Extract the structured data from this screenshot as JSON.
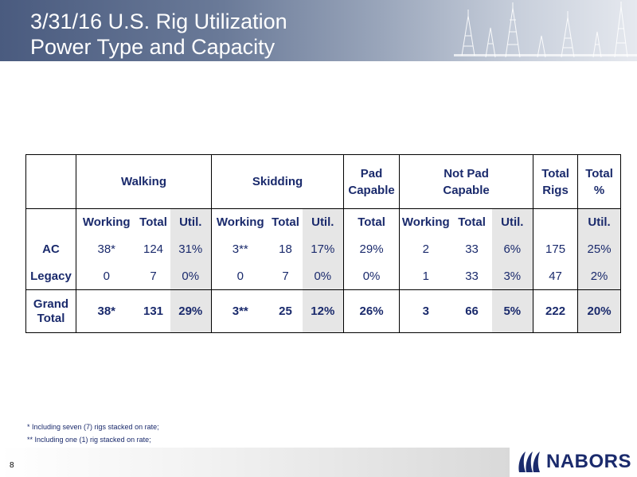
{
  "header": {
    "title_line1": "3/31/16 U.S. Rig Utilization",
    "title_line2": "Power Type and Capacity"
  },
  "table": {
    "group_headers": {
      "walking": "Walking",
      "skidding": "Skidding",
      "pad_capable_line1": "Pad",
      "pad_capable_line2": "Capable",
      "not_pad_line1": "Not Pad",
      "not_pad_line2": "Capable",
      "total_rigs_line1": "Total",
      "total_rigs_line2": "Rigs",
      "total_pct_line1": "Total",
      "total_pct_line2": "%"
    },
    "sub_headers": {
      "walking_working": "Working",
      "walking_total": "Total",
      "walking_util": "Util.",
      "skidding_working": "Working",
      "skidding_total": "Total",
      "skidding_util": "Util.",
      "pad_total": "Total",
      "notpad_working": "Working",
      "notpad_total": "Total",
      "notpad_util": "Util.",
      "total_util": "Util."
    },
    "rows": [
      {
        "label": "AC",
        "values": [
          "38*",
          "124",
          "31%",
          "3**",
          "18",
          "17%",
          "29%",
          "2",
          "33",
          "6%",
          "175",
          "25%"
        ]
      },
      {
        "label": "Legacy",
        "values": [
          "0",
          "7",
          "0%",
          "0",
          "7",
          "0%",
          "0%",
          "1",
          "33",
          "3%",
          "47",
          "2%"
        ]
      }
    ],
    "grand_total": {
      "label_line1": "Grand",
      "label_line2": "Total",
      "values": [
        "38*",
        "131",
        "29%",
        "3**",
        "25",
        "12%",
        "26%",
        "3",
        "66",
        "5%",
        "222",
        "20%"
      ]
    }
  },
  "footnotes": [
    "* Including seven (7) rigs stacked on rate;",
    "** Including one (1) rig stacked on rate;"
  ],
  "footer": {
    "page_number": "8",
    "logo_text": "NABORS"
  },
  "colors": {
    "text_navy": "#1a2a6c",
    "util_shade": "#e6e6e6",
    "header_dark": "#4a5b7f"
  }
}
